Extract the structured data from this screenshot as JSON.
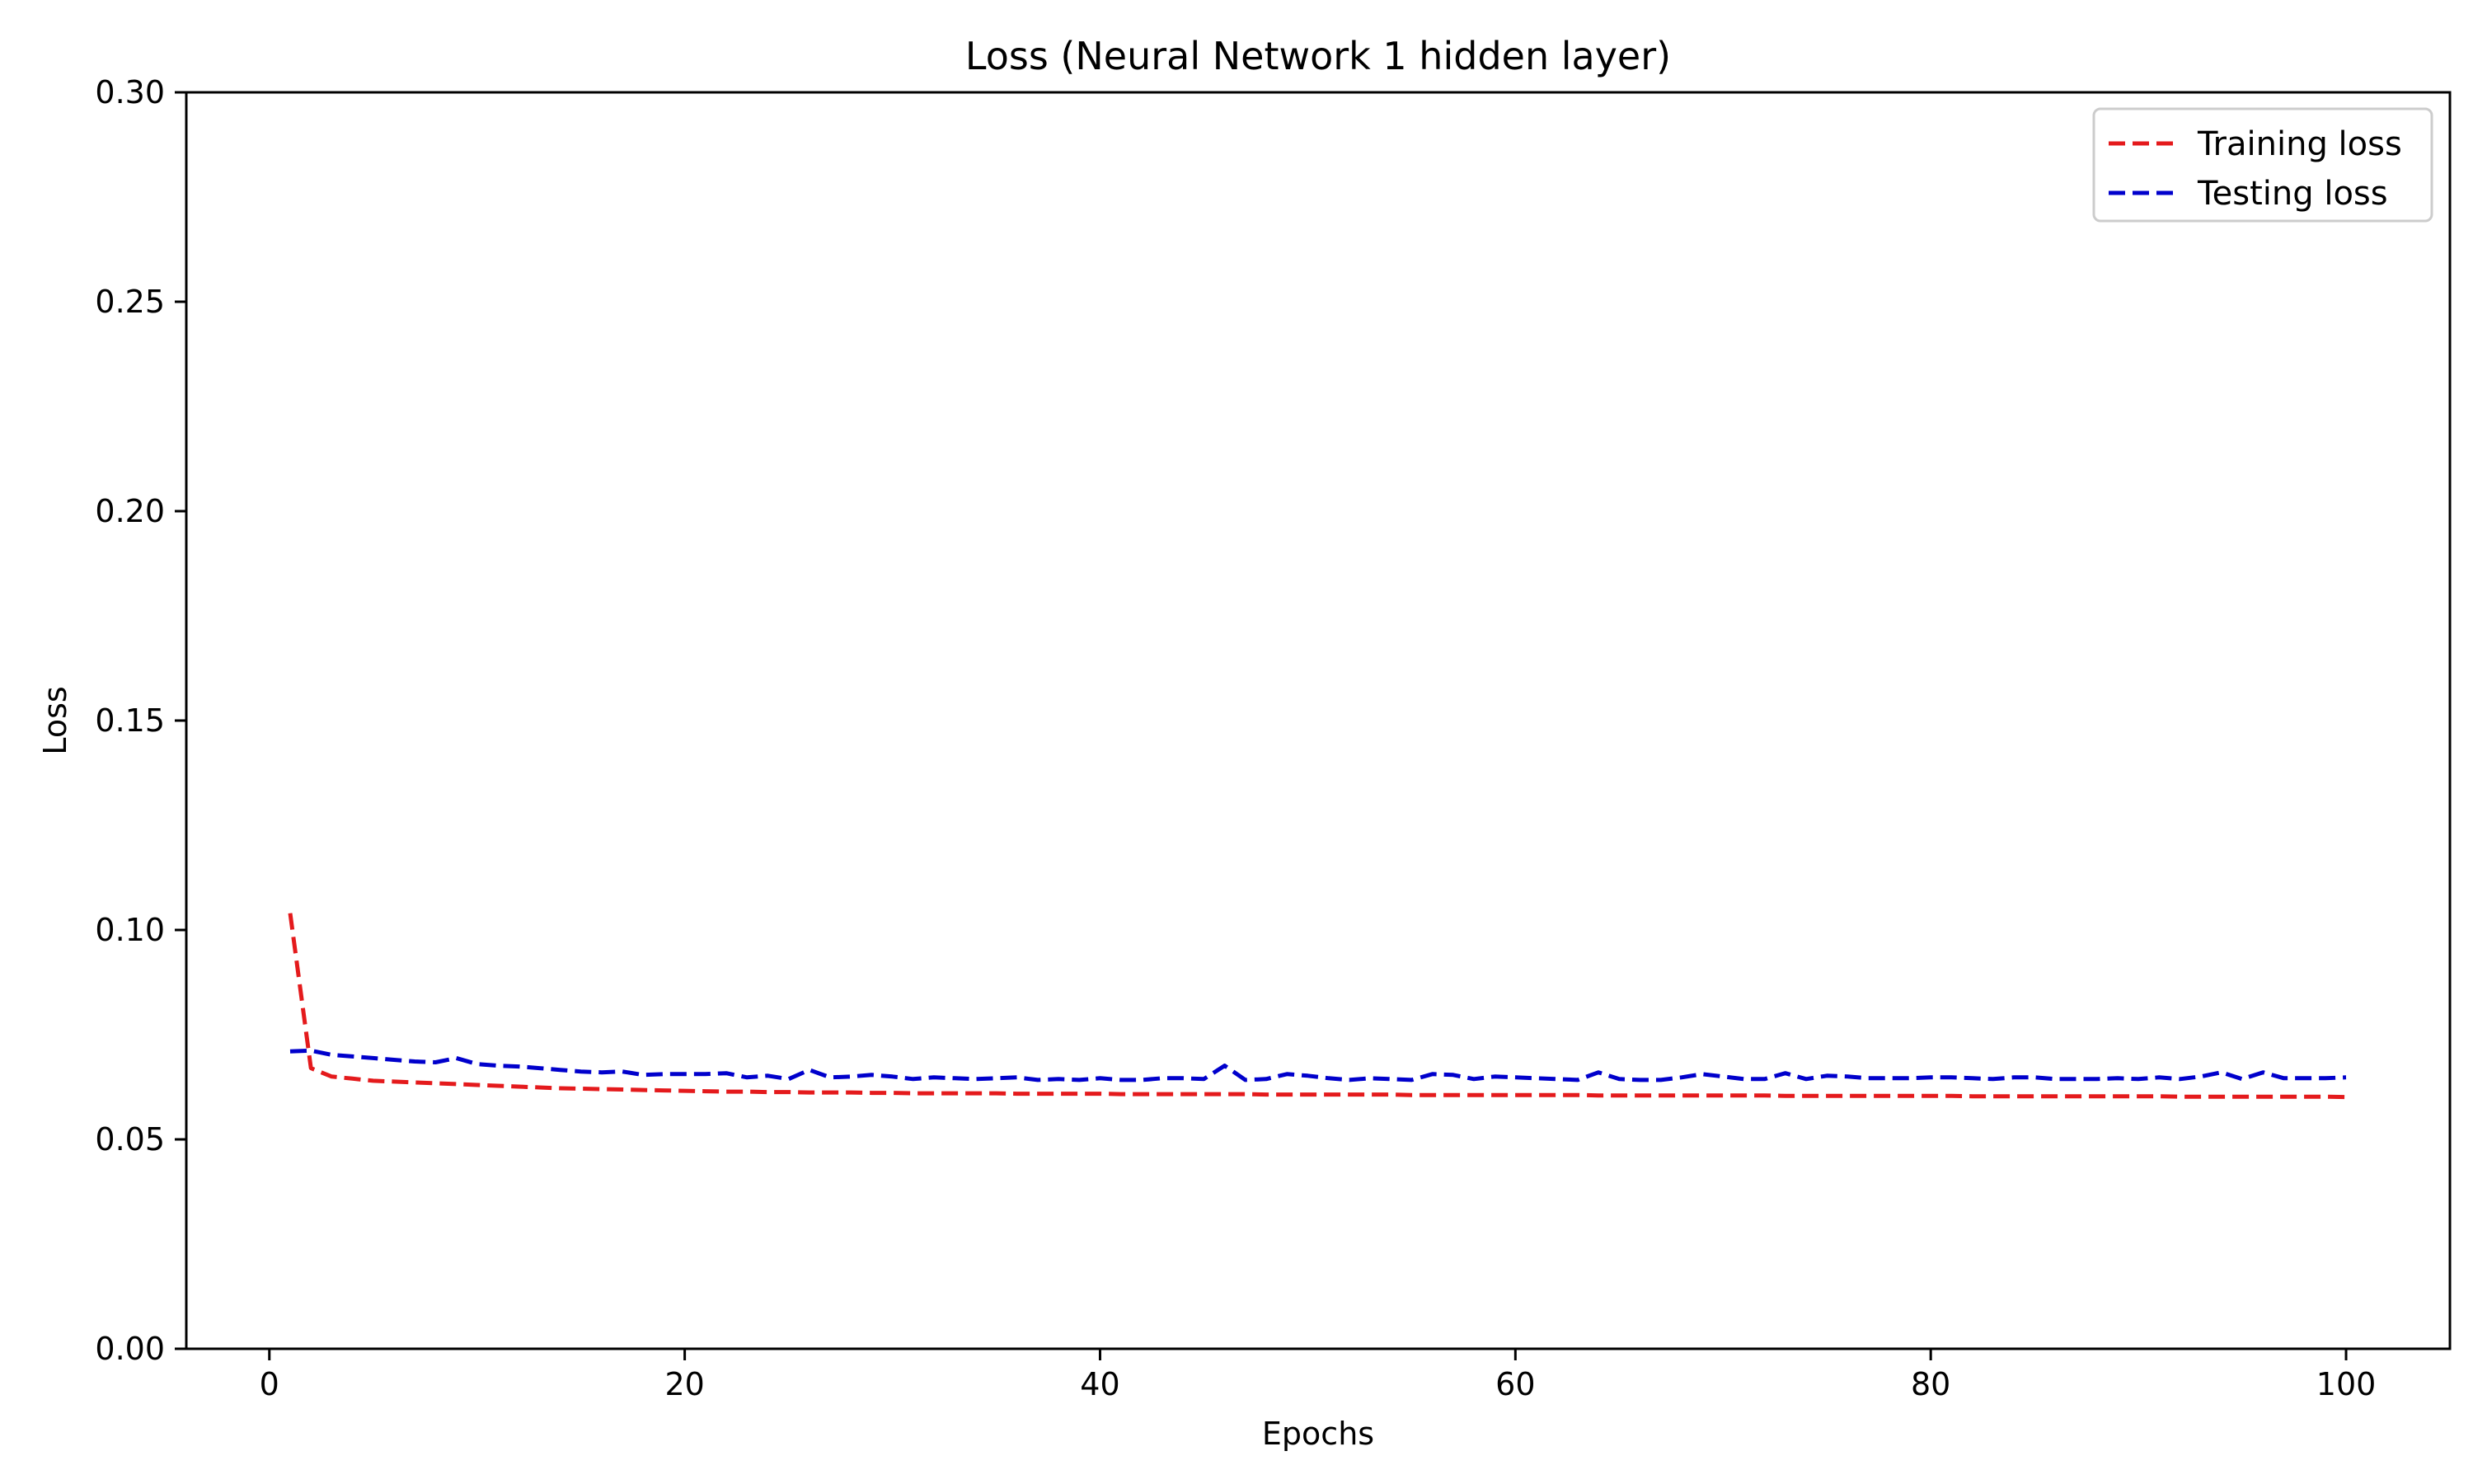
{
  "chart_data": {
    "type": "line",
    "title": "Loss (Neural Network 1 hidden layer)",
    "xlabel": "Epochs",
    "ylabel": "Loss",
    "xlim": [
      -4,
      105
    ],
    "ylim": [
      0,
      0.3
    ],
    "xticks": [
      0,
      20,
      40,
      60,
      80,
      100
    ],
    "yticks": [
      0.0,
      0.05,
      0.1,
      0.15,
      0.2,
      0.25,
      0.3
    ],
    "xtick_labels": [
      "0",
      "20",
      "40",
      "60",
      "80",
      "100"
    ],
    "ytick_labels": [
      "0.00",
      "0.05",
      "0.10",
      "0.15",
      "0.20",
      "0.25",
      "0.30"
    ],
    "grid": false,
    "legend_position": "top-right",
    "x": [
      1,
      2,
      3,
      4,
      5,
      6,
      7,
      8,
      9,
      10,
      11,
      12,
      13,
      14,
      15,
      16,
      17,
      18,
      19,
      20,
      21,
      22,
      23,
      24,
      25,
      26,
      27,
      28,
      29,
      30,
      31,
      32,
      33,
      34,
      35,
      36,
      37,
      38,
      39,
      40,
      41,
      42,
      43,
      44,
      45,
      46,
      47,
      48,
      49,
      50,
      51,
      52,
      53,
      54,
      55,
      56,
      57,
      58,
      59,
      60,
      61,
      62,
      63,
      64,
      65,
      66,
      67,
      68,
      69,
      70,
      71,
      72,
      73,
      74,
      75,
      76,
      77,
      78,
      79,
      80,
      81,
      82,
      83,
      84,
      85,
      86,
      87,
      88,
      89,
      90,
      91,
      92,
      93,
      94,
      95,
      96,
      97,
      98,
      99,
      100
    ],
    "series": [
      {
        "name": "Training loss",
        "color": "#e41a1c",
        "style": "dashed",
        "values": [
          0.104,
          0.067,
          0.065,
          0.0645,
          0.064,
          0.0638,
          0.0636,
          0.0634,
          0.0632,
          0.063,
          0.0628,
          0.0626,
          0.0624,
          0.0622,
          0.0621,
          0.062,
          0.0619,
          0.0618,
          0.0617,
          0.0616,
          0.0615,
          0.0614,
          0.0614,
          0.0613,
          0.0613,
          0.0612,
          0.0612,
          0.0612,
          0.0611,
          0.0611,
          0.061,
          0.061,
          0.061,
          0.061,
          0.061,
          0.0609,
          0.0609,
          0.0609,
          0.0609,
          0.0609,
          0.0608,
          0.0608,
          0.0608,
          0.0608,
          0.0608,
          0.0608,
          0.0608,
          0.0607,
          0.0607,
          0.0607,
          0.0607,
          0.0607,
          0.0607,
          0.0607,
          0.0606,
          0.0606,
          0.0606,
          0.0606,
          0.0606,
          0.0606,
          0.0606,
          0.0606,
          0.0606,
          0.0605,
          0.0605,
          0.0605,
          0.0605,
          0.0605,
          0.0605,
          0.0605,
          0.0605,
          0.0605,
          0.0604,
          0.0604,
          0.0604,
          0.0604,
          0.0604,
          0.0604,
          0.0604,
          0.0604,
          0.0604,
          0.0603,
          0.0603,
          0.0603,
          0.0603,
          0.0603,
          0.0603,
          0.0603,
          0.0603,
          0.0603,
          0.0603,
          0.0602,
          0.0602,
          0.0602,
          0.0602,
          0.0602,
          0.0602,
          0.0602,
          0.0602,
          0.0601
        ]
      },
      {
        "name": "Testing loss",
        "color": "#0000cc",
        "style": "dashed",
        "values": [
          0.071,
          0.0712,
          0.0702,
          0.0698,
          0.0694,
          0.069,
          0.0686,
          0.0684,
          0.0694,
          0.068,
          0.0676,
          0.0674,
          0.067,
          0.0666,
          0.0662,
          0.066,
          0.0662,
          0.0654,
          0.0656,
          0.0656,
          0.0656,
          0.0658,
          0.0648,
          0.0652,
          0.0644,
          0.0666,
          0.0648,
          0.065,
          0.0654,
          0.065,
          0.0644,
          0.0648,
          0.0646,
          0.0644,
          0.0646,
          0.0648,
          0.0642,
          0.0644,
          0.0642,
          0.0646,
          0.0642,
          0.0642,
          0.0646,
          0.0646,
          0.0644,
          0.0676,
          0.0642,
          0.0644,
          0.0656,
          0.0652,
          0.0646,
          0.0642,
          0.0646,
          0.0644,
          0.0642,
          0.0656,
          0.0654,
          0.0644,
          0.065,
          0.0648,
          0.0646,
          0.0644,
          0.0642,
          0.066,
          0.0644,
          0.0642,
          0.0642,
          0.0648,
          0.0656,
          0.065,
          0.0644,
          0.0644,
          0.0658,
          0.0644,
          0.0652,
          0.065,
          0.0646,
          0.0646,
          0.0646,
          0.0648,
          0.0648,
          0.0646,
          0.0644,
          0.0648,
          0.0648,
          0.0644,
          0.0644,
          0.0644,
          0.0646,
          0.0644,
          0.0648,
          0.0644,
          0.065,
          0.066,
          0.0644,
          0.066,
          0.0646,
          0.0646,
          0.0646,
          0.0648
        ]
      }
    ]
  }
}
